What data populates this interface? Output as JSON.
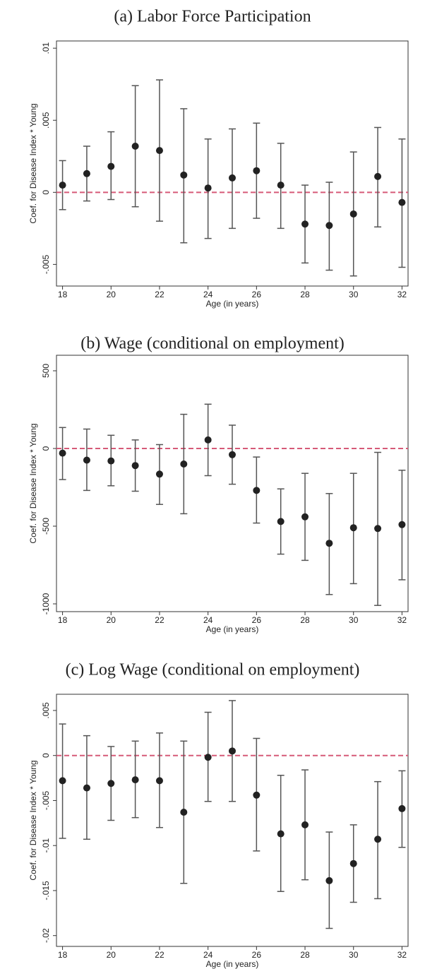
{
  "chart_data": [
    {
      "type": "errorbar",
      "title": "(a) Labor Force Participation",
      "xlabel": "Age (in years)",
      "ylabel": "Coef. for Disease Index * Young",
      "x": [
        18,
        19,
        20,
        21,
        22,
        23,
        24,
        25,
        26,
        27,
        28,
        29,
        30,
        31,
        32
      ],
      "values": [
        0.0005,
        0.0013,
        0.0018,
        0.0032,
        0.0029,
        0.0012,
        0.0003,
        0.001,
        0.0015,
        0.0005,
        -0.0022,
        -0.0023,
        -0.0015,
        0.0011,
        -0.0007
      ],
      "lower": [
        -0.0012,
        -0.0006,
        -0.0005,
        -0.001,
        -0.002,
        -0.0035,
        -0.0032,
        -0.0025,
        -0.0018,
        -0.0025,
        -0.0049,
        -0.0054,
        -0.0058,
        -0.0024,
        -0.0052
      ],
      "upper": [
        0.0022,
        0.0032,
        0.0042,
        0.0074,
        0.0078,
        0.0058,
        0.0037,
        0.0044,
        0.0048,
        0.0034,
        0.0005,
        0.0007,
        0.0028,
        0.0045,
        0.0037
      ],
      "color": "#222222",
      "bar_color": "#555555",
      "hline": 0,
      "hline_color": "#d65a78",
      "xlim": [
        17.75,
        32.25
      ],
      "xticks": [
        18,
        20,
        22,
        24,
        26,
        28,
        30,
        32
      ],
      "ylim": [
        -0.0065,
        0.0105
      ],
      "yticks": [
        {
          "value": -0.005,
          "label": "-.005"
        },
        0,
        {
          "value": 0.005,
          "label": ".005"
        },
        {
          "value": 0.01,
          "label": ".01"
        }
      ]
    },
    {
      "type": "errorbar",
      "title": "(b) Wage (conditional on employment)",
      "xlabel": "Age (in years)",
      "ylabel": "Coef. for Disease Index * Young",
      "x": [
        18,
        19,
        20,
        21,
        22,
        23,
        24,
        25,
        26,
        27,
        28,
        29,
        30,
        31,
        32
      ],
      "values": [
        -30,
        -75,
        -80,
        -110,
        -165,
        -100,
        55,
        -40,
        -270,
        -470,
        -440,
        -610,
        -510,
        -515,
        -490
      ],
      "lower": [
        -200,
        -270,
        -240,
        -275,
        -360,
        -420,
        -175,
        -230,
        -480,
        -680,
        -720,
        -940,
        -870,
        -1010,
        -845
      ],
      "upper": [
        135,
        125,
        85,
        55,
        25,
        220,
        285,
        150,
        -55,
        -260,
        -160,
        -290,
        -160,
        -25,
        -140
      ],
      "color": "#222222",
      "bar_color": "#555555",
      "hline": 0,
      "hline_color": "#d65a78",
      "xlim": [
        17.75,
        32.25
      ],
      "xticks": [
        18,
        20,
        22,
        24,
        26,
        28,
        30,
        32
      ],
      "ylim": [
        -1050,
        600
      ],
      "yticks": [
        -1000,
        -500,
        0,
        500
      ]
    },
    {
      "type": "errorbar",
      "title": "(c) Log Wage (conditional on employment)",
      "xlabel": "Age (in years)",
      "ylabel": "Coef. for Disease Index * Young",
      "x": [
        18,
        19,
        20,
        21,
        22,
        23,
        24,
        25,
        26,
        27,
        28,
        29,
        30,
        31,
        32
      ],
      "values": [
        -0.0028,
        -0.0036,
        -0.0031,
        -0.0027,
        -0.0028,
        -0.0063,
        -0.0002,
        0.0005,
        -0.0044,
        -0.0087,
        -0.0077,
        -0.0139,
        -0.012,
        -0.0093,
        -0.0059
      ],
      "lower": [
        -0.0092,
        -0.0093,
        -0.0072,
        -0.0069,
        -0.008,
        -0.0142,
        -0.0051,
        -0.0051,
        -0.0106,
        -0.0151,
        -0.0138,
        -0.0192,
        -0.0163,
        -0.0159,
        -0.0102
      ],
      "upper": [
        0.0035,
        0.0022,
        0.001,
        0.0016,
        0.0025,
        0.0016,
        0.0048,
        0.0061,
        0.0019,
        -0.0022,
        -0.0016,
        -0.0085,
        -0.0077,
        -0.0029,
        -0.0017
      ],
      "color": "#222222",
      "bar_color": "#555555",
      "hline": 0,
      "hline_color": "#d65a78",
      "xlim": [
        17.75,
        32.25
      ],
      "xticks": [
        18,
        20,
        22,
        24,
        26,
        28,
        30,
        32
      ],
      "ylim": [
        -0.0212,
        0.0068
      ],
      "yticks": [
        {
          "value": -0.02,
          "label": "-.02"
        },
        {
          "value": -0.015,
          "label": "-.015"
        },
        {
          "value": -0.01,
          "label": "-.01"
        },
        {
          "value": -0.005,
          "label": "-.005"
        },
        0,
        {
          "value": 0.005,
          "label": ".005"
        }
      ]
    }
  ]
}
